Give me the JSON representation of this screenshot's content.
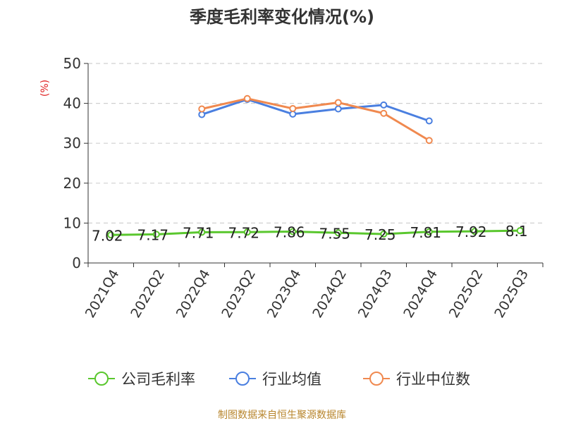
{
  "chart_data": {
    "type": "line",
    "title": "季度毛利率变化情况(%)",
    "ylabel": "(%)",
    "xlabel": "",
    "ylim": [
      0,
      50
    ],
    "yticks": [
      0,
      10,
      20,
      30,
      40,
      50
    ],
    "grid": true,
    "legend_position": "bottom",
    "categories": [
      "2021Q4",
      "2022Q2",
      "2022Q4",
      "2023Q2",
      "2023Q4",
      "2024Q2",
      "2024Q3",
      "2024Q4",
      "2025Q2",
      "2025Q3"
    ],
    "series": [
      {
        "name": "公司毛利率",
        "color": "#5ac72e",
        "values": [
          7.02,
          7.17,
          7.71,
          7.72,
          7.86,
          7.55,
          7.25,
          7.81,
          7.92,
          8.1
        ],
        "labels": [
          "7.02",
          "7.17",
          "7.71",
          "7.72",
          "7.86",
          "7.55",
          "7.25",
          "7.81",
          "7.92",
          "8.1"
        ]
      },
      {
        "name": "行业均值",
        "color": "#4a7fe0",
        "values": [
          null,
          null,
          37.2,
          41.0,
          37.3,
          38.6,
          39.6,
          35.6,
          null,
          null
        ]
      },
      {
        "name": "行业中位数",
        "color": "#f0894f",
        "values": [
          null,
          null,
          38.6,
          41.2,
          38.7,
          40.2,
          37.5,
          30.7,
          null,
          null
        ]
      }
    ]
  },
  "source": "制图数据来自恒生聚源数据库"
}
